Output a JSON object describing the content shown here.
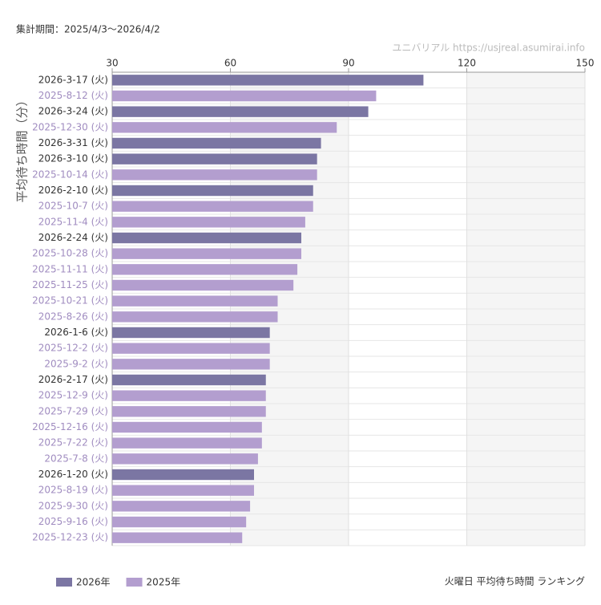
{
  "chart_data": {
    "type": "bar",
    "orientation": "horizontal",
    "period": "集計期間：2025/4/3〜2026/4/2",
    "source": "ユニバリアル  https://usjreal.asumirai.info",
    "title": "火曜日 平均待ち時間 ランキング",
    "y_label": "平均待ち時間（分）",
    "categories": [
      "2026-3-17 (火)",
      "2025-8-12 (火)",
      "2026-3-24 (火)",
      "2025-12-30 (火)",
      "2026-3-31 (火)",
      "2026-3-10 (火)",
      "2025-10-14 (火)",
      "2026-2-10 (火)",
      "2025-10-7 (火)",
      "2025-11-4 (火)",
      "2026-2-24 (火)",
      "2025-10-28 (火)",
      "2025-11-11 (火)",
      "2025-11-25 (火)",
      "2025-10-21 (火)",
      "2025-8-26 (火)",
      "2026-1-6 (火)",
      "2025-12-2 (火)",
      "2025-9-2 (火)",
      "2026-2-17 (火)",
      "2025-12-9 (火)",
      "2025-7-29 (火)",
      "2025-12-16 (火)",
      "2025-7-22 (火)",
      "2025-7-8 (火)",
      "2026-1-20 (火)",
      "2025-8-19 (火)",
      "2025-9-30 (火)",
      "2025-9-16 (火)",
      "2025-12-23 (火)"
    ],
    "series": [
      {
        "name": "2026年",
        "color": "#7b76a3",
        "label_color": "#333333",
        "values": [
          109,
          null,
          95,
          null,
          83,
          82,
          null,
          81,
          null,
          null,
          78,
          null,
          null,
          null,
          null,
          null,
          70,
          null,
          null,
          69,
          null,
          null,
          null,
          null,
          null,
          66,
          null,
          null,
          null,
          null
        ]
      },
      {
        "name": "2025年",
        "color": "#b39ecf",
        "label_color": "#a08cc0",
        "values": [
          null,
          97,
          null,
          87,
          null,
          null,
          82,
          null,
          81,
          79,
          null,
          78,
          77,
          76,
          72,
          72,
          null,
          70,
          70,
          null,
          69,
          69,
          68,
          68,
          67,
          null,
          66,
          65,
          64,
          63
        ]
      }
    ],
    "xlim": [
      30,
      150
    ],
    "xticks": [
      30,
      60,
      90,
      120,
      150
    ],
    "grid": true
  }
}
